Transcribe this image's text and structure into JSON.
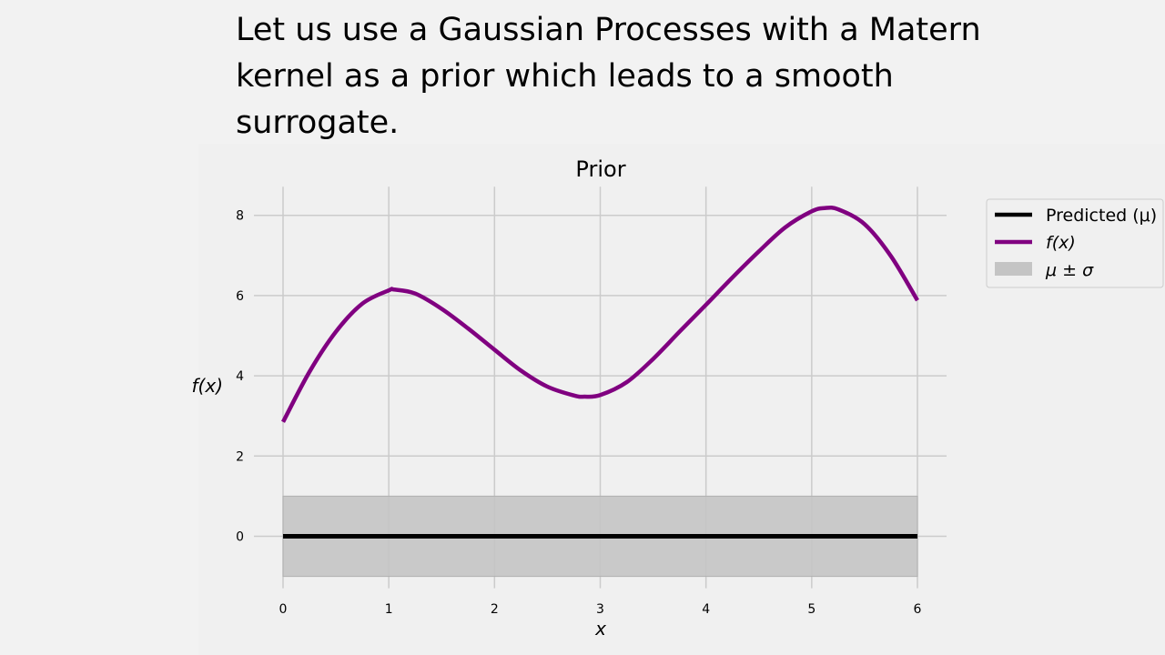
{
  "slide": {
    "headline": "Let us use a Gaussian Processes with a Matern kernel as a prior which leads to a smooth surrogate."
  },
  "colors": {
    "background": "#f2f2f2",
    "plot_background": "#f0f0f0",
    "grid": "#cbcbcb",
    "predicted": "#000000",
    "f_curve": "#800080",
    "band": "#c4c4c4"
  },
  "chart_data": {
    "type": "line",
    "title": "Prior",
    "xlabel": "x",
    "ylabel": "f(x)",
    "xlim": [
      0,
      6
    ],
    "ylim": [
      -1,
      8.6
    ],
    "xticks": [
      0,
      1,
      2,
      3,
      4,
      5,
      6
    ],
    "yticks": [
      0,
      2,
      4,
      6,
      8
    ],
    "grid": true,
    "legend_position": "outside-right-top",
    "legend": [
      {
        "label": "Predicted (μ)",
        "kind": "line",
        "color": "#000000",
        "italic": false
      },
      {
        "label": "f(x)",
        "kind": "line",
        "color": "#800080",
        "italic": true
      },
      {
        "label": "μ ± σ",
        "kind": "patch",
        "color": "#c4c4c4",
        "italic": true
      }
    ],
    "series": [
      {
        "name": "f(x)",
        "x": [
          0,
          0.25,
          0.5,
          0.75,
          1.0,
          1.05,
          1.25,
          1.5,
          1.75,
          2.0,
          2.25,
          2.5,
          2.75,
          2.85,
          3.0,
          3.25,
          3.5,
          3.75,
          4.0,
          4.25,
          4.5,
          4.75,
          5.0,
          5.12,
          5.25,
          5.5,
          5.75,
          6.0
        ],
        "values": [
          2.85,
          4.1,
          5.1,
          5.8,
          6.13,
          6.15,
          6.05,
          5.67,
          5.18,
          4.65,
          4.13,
          3.73,
          3.51,
          3.48,
          3.52,
          3.84,
          4.42,
          5.1,
          5.77,
          6.45,
          7.1,
          7.7,
          8.1,
          8.18,
          8.15,
          7.78,
          6.98,
          5.88
        ]
      },
      {
        "name": "Predicted (μ)",
        "x": [
          0,
          6
        ],
        "values": [
          0,
          0
        ]
      }
    ],
    "band": {
      "name": "μ ± σ",
      "x": [
        0,
        6
      ],
      "lower": [
        -1,
        -1
      ],
      "upper": [
        1,
        1
      ]
    }
  }
}
